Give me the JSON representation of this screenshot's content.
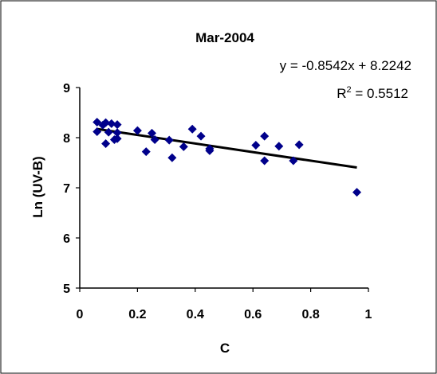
{
  "chart_data": {
    "type": "scatter",
    "title": "Mar-2004",
    "xlabel": "C",
    "ylabel": "Ln (UV-B)",
    "xlim": [
      0,
      1
    ],
    "ylim": [
      5,
      9
    ],
    "xticks": [
      "0",
      "0.2",
      "0.4",
      "0.6",
      "0.8",
      "1"
    ],
    "yticks": [
      "5",
      "6",
      "7",
      "8",
      "9"
    ],
    "grid": false,
    "marker_color": "#00008B",
    "line_color": "#000000",
    "points": [
      {
        "x": 0.06,
        "y": 8.31
      },
      {
        "x": 0.06,
        "y": 8.12
      },
      {
        "x": 0.08,
        "y": 8.25
      },
      {
        "x": 0.09,
        "y": 7.88
      },
      {
        "x": 0.09,
        "y": 8.3
      },
      {
        "x": 0.1,
        "y": 8.11
      },
      {
        "x": 0.11,
        "y": 8.28
      },
      {
        "x": 0.12,
        "y": 7.96
      },
      {
        "x": 0.13,
        "y": 8.26
      },
      {
        "x": 0.13,
        "y": 8.1
      },
      {
        "x": 0.13,
        "y": 7.98
      },
      {
        "x": 0.2,
        "y": 8.14
      },
      {
        "x": 0.23,
        "y": 7.72
      },
      {
        "x": 0.25,
        "y": 8.09
      },
      {
        "x": 0.26,
        "y": 7.96
      },
      {
        "x": 0.31,
        "y": 7.95
      },
      {
        "x": 0.32,
        "y": 7.6
      },
      {
        "x": 0.36,
        "y": 7.82
      },
      {
        "x": 0.39,
        "y": 8.17
      },
      {
        "x": 0.42,
        "y": 8.03
      },
      {
        "x": 0.45,
        "y": 7.78
      },
      {
        "x": 0.45,
        "y": 7.74
      },
      {
        "x": 0.61,
        "y": 7.85
      },
      {
        "x": 0.64,
        "y": 8.03
      },
      {
        "x": 0.64,
        "y": 7.54
      },
      {
        "x": 0.69,
        "y": 7.83
      },
      {
        "x": 0.74,
        "y": 7.54
      },
      {
        "x": 0.76,
        "y": 7.86
      },
      {
        "x": 0.96,
        "y": 6.91
      }
    ],
    "trendline": {
      "type": "linear",
      "slope": -0.8542,
      "intercept": 8.2242,
      "x_range": [
        0.06,
        0.96
      ],
      "equation_label": "y = -0.8542x + 8.2242",
      "r2_prefix": "R",
      "r2_sup": "2",
      "r2_suffix": " = 0.5512"
    }
  }
}
